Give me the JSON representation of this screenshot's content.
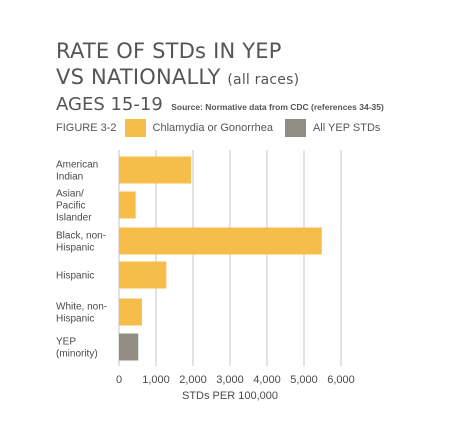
{
  "header": {
    "title_line1": "RATE OF STDs IN YEP",
    "title_line2": "VS NATIONALLY",
    "title_qualifier": "(all races)",
    "ages": "AGES 15-19",
    "source": "Source: Normative data from CDC (references 34-35)",
    "figure_label": "FIGURE 3-2"
  },
  "legend": [
    {
      "label": "Chlamydia or Gonorrhea",
      "color": "#F7BD4A"
    },
    {
      "label": "All YEP STDs",
      "color": "#928D82"
    }
  ],
  "chart_data": {
    "type": "bar",
    "orientation": "horizontal",
    "title": "RATE OF STDs IN YEP VS NATIONALLY (all races) AGES 15-19",
    "xlabel": "STDs PER 100,000",
    "ylabel": "",
    "xlim": [
      0,
      6000
    ],
    "xticks": [
      0,
      1000,
      2000,
      3000,
      4000,
      5000,
      6000
    ],
    "xtick_labels": [
      "0",
      "1,000",
      "2,000",
      "3,000",
      "4,000",
      "5,000",
      "6,000"
    ],
    "grid": true,
    "legend_position": "top",
    "categories": [
      {
        "lines": [
          "American",
          "Indian"
        ]
      },
      {
        "lines": [
          "Asian/",
          "Pacific",
          "Islander"
        ]
      },
      {
        "lines": [
          "Black, non-",
          "Hispanic"
        ]
      },
      {
        "lines": [
          "Hispanic"
        ]
      },
      {
        "lines": [
          "White, non-",
          "Hispanic"
        ]
      },
      {
        "lines": [
          "YEP",
          "(minority)"
        ]
      }
    ],
    "values": [
      1950,
      450,
      5480,
      1280,
      620,
      520
    ],
    "series_index": [
      0,
      0,
      0,
      0,
      0,
      1
    ]
  }
}
